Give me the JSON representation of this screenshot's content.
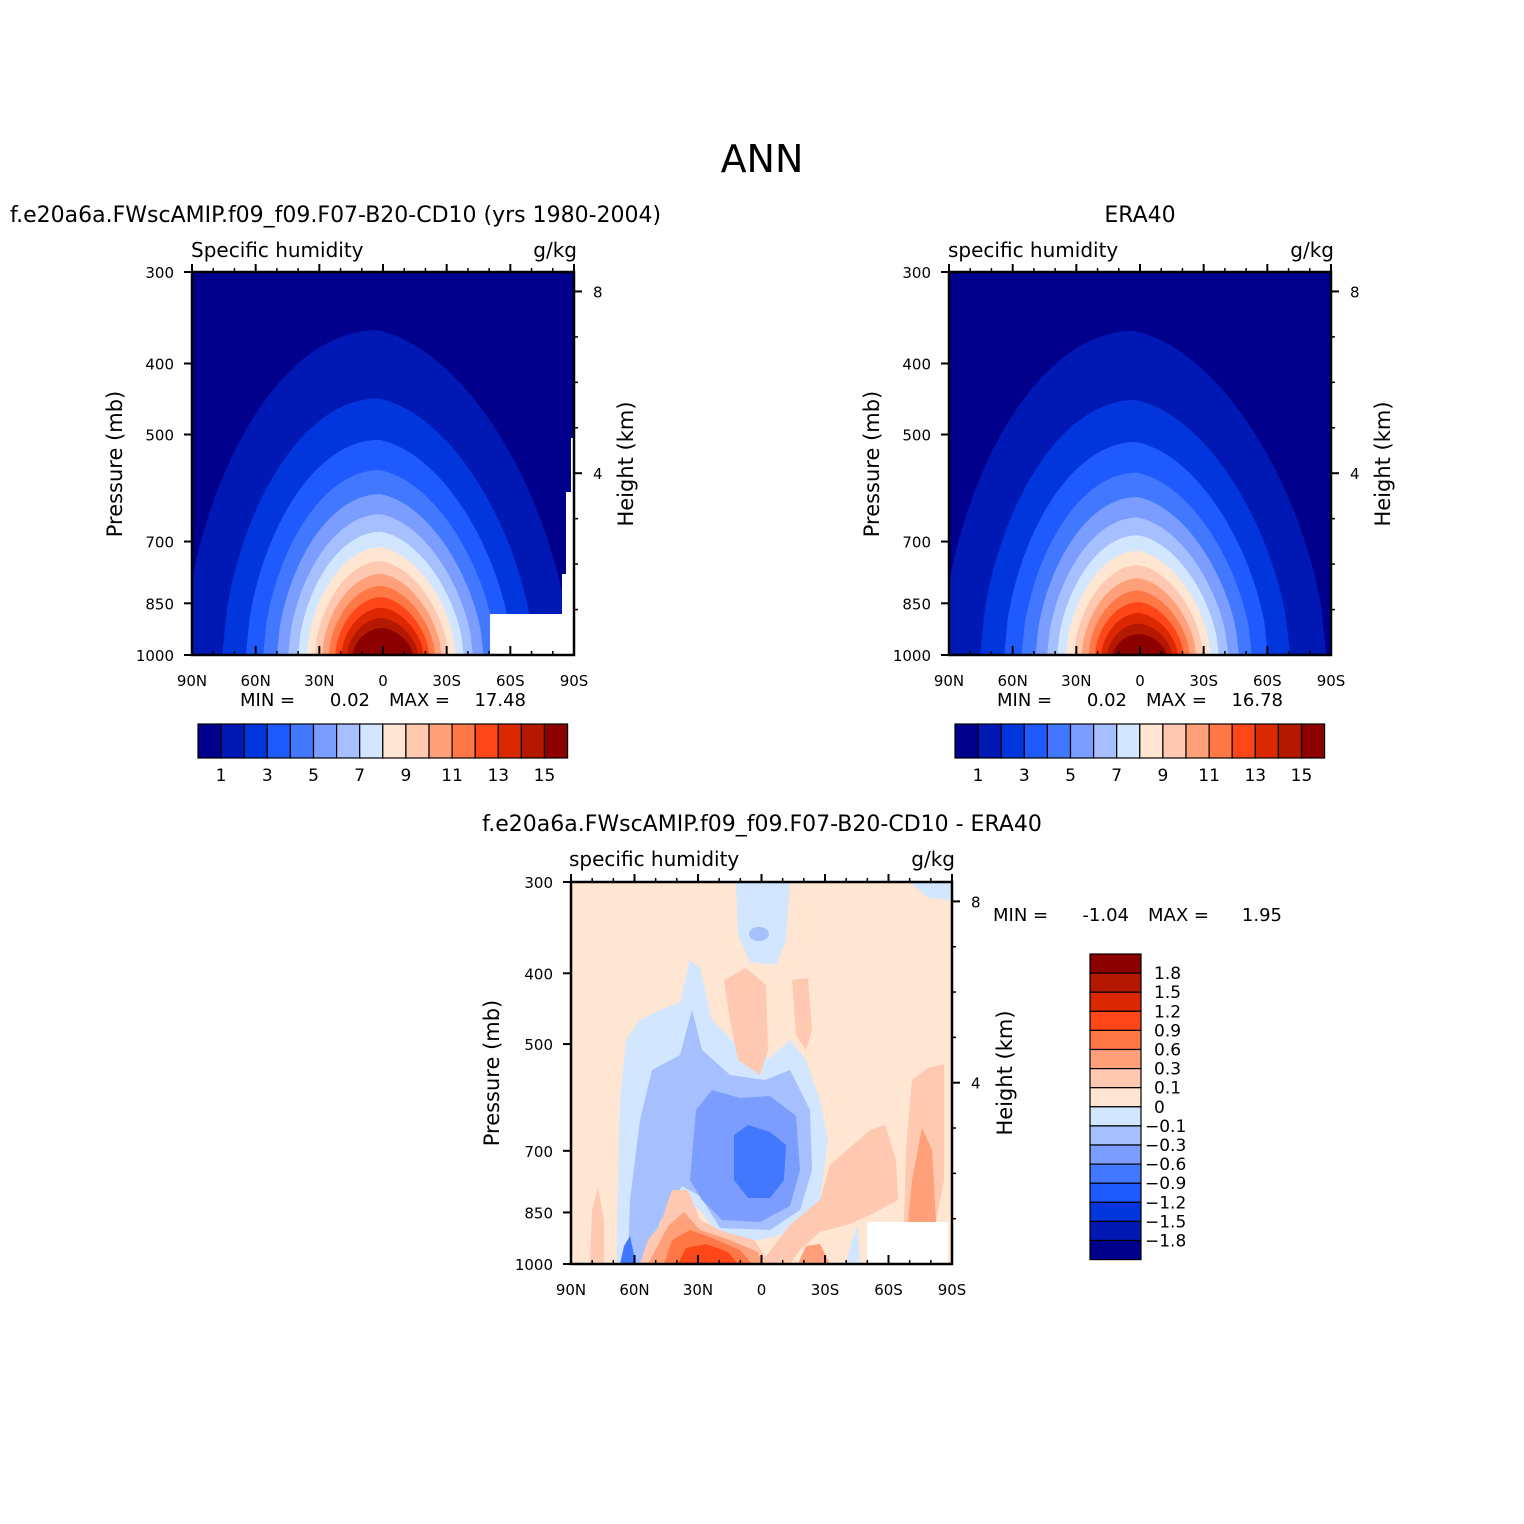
{
  "figure": {
    "title": "ANN"
  },
  "panels": [
    {
      "case": "f.e20a6a.FWscAMIP.f09_f09.F07-B20-CD10 (yrs 1980-2004)",
      "variable": "Specific humidity",
      "units": "g/kg",
      "ylabel": "Pressure (mb)",
      "ylabel_right": "Height (km)",
      "min_label": "MIN =",
      "min_value": "0.02",
      "max_label": "MAX =",
      "max_value": "17.48"
    },
    {
      "case": "ERA40",
      "variable": "specific humidity",
      "units": "g/kg",
      "ylabel": "Pressure (mb)",
      "ylabel_right": "Height (km)",
      "min_label": "MIN =",
      "min_value": "0.02",
      "max_label": "MAX =",
      "max_value": "16.78"
    },
    {
      "case": "f.e20a6a.FWscAMIP.f09_f09.F07-B20-CD10 - ERA40",
      "variable": "specific humidity",
      "units": "g/kg",
      "ylabel": "Pressure (mb)",
      "ylabel_right": "Height (km)",
      "min_label": "MIN =",
      "min_value": "-1.04",
      "max_label": "MAX =",
      "max_value": "1.95"
    }
  ],
  "chart_data": [
    {
      "type": "heatmap",
      "title": "f.e20a6a.FWscAMIP.f09_f09.F07-B20-CD10 (yrs 1980-2004)",
      "subtitle": "Specific humidity",
      "units": "g/kg",
      "ylabel": "Pressure (mb)",
      "ylabel_right": "Height (km)",
      "x_tick_labels": [
        "90N",
        "60N",
        "30N",
        "0",
        "30S",
        "60S",
        "90S"
      ],
      "x_ticks_lat": [
        90,
        60,
        30,
        0,
        -30,
        -60,
        -90
      ],
      "y_ticks": [
        300,
        400,
        500,
        700,
        850,
        1000
      ],
      "y_ticks_right_km": [
        4,
        8
      ],
      "ylim": [
        1000,
        300
      ],
      "xlim": [
        90,
        -90
      ],
      "min": 0.02,
      "max": 17.48,
      "peak_lat": 0,
      "peak_value": 17.48,
      "colorbar_labels": [
        "1",
        "3",
        "5",
        "7",
        "9",
        "11",
        "13",
        "15"
      ],
      "levels": [
        1,
        2,
        3,
        4,
        5,
        6,
        7,
        8,
        9,
        10,
        11,
        12,
        13,
        14,
        15
      ],
      "colors": [
        "#00008c",
        "#0019b4",
        "#0036dc",
        "#1e5aff",
        "#4178ff",
        "#7b9dff",
        "#a5bfff",
        "#d2e7ff",
        "#ffe6d2",
        "#ffc8b0",
        "#ffa07a",
        "#ff7846",
        "#ff4619",
        "#dc2800",
        "#b41900",
        "#8c0000"
      ],
      "missing_region": "surface below 1000 mb near 60S-90S"
    },
    {
      "type": "heatmap",
      "title": "ERA40",
      "subtitle": "specific humidity",
      "units": "g/kg",
      "ylabel": "Pressure (mb)",
      "ylabel_right": "Height (km)",
      "x_tick_labels": [
        "90N",
        "60N",
        "30N",
        "0",
        "30S",
        "60S",
        "90S"
      ],
      "x_ticks_lat": [
        90,
        60,
        30,
        0,
        -30,
        -60,
        -90
      ],
      "y_ticks": [
        300,
        400,
        500,
        700,
        850,
        1000
      ],
      "y_ticks_right_km": [
        4,
        8
      ],
      "ylim": [
        1000,
        300
      ],
      "xlim": [
        90,
        -90
      ],
      "min": 0.02,
      "max": 16.78,
      "peak_lat": 0,
      "peak_value": 16.78,
      "colorbar_labels": [
        "1",
        "3",
        "5",
        "7",
        "9",
        "11",
        "13",
        "15"
      ],
      "levels": [
        1,
        2,
        3,
        4,
        5,
        6,
        7,
        8,
        9,
        10,
        11,
        12,
        13,
        14,
        15
      ],
      "colors": [
        "#00008c",
        "#0019b4",
        "#0036dc",
        "#1e5aff",
        "#4178ff",
        "#7b9dff",
        "#a5bfff",
        "#d2e7ff",
        "#ffe6d2",
        "#ffc8b0",
        "#ffa07a",
        "#ff7846",
        "#ff4619",
        "#dc2800",
        "#b41900",
        "#8c0000"
      ]
    },
    {
      "type": "heatmap",
      "title": "f.e20a6a.FWscAMIP.f09_f09.F07-B20-CD10 - ERA40",
      "subtitle": "specific humidity",
      "units": "g/kg",
      "ylabel": "Pressure (mb)",
      "ylabel_right": "Height (km)",
      "x_tick_labels": [
        "90N",
        "60N",
        "30N",
        "0",
        "30S",
        "60S",
        "90S"
      ],
      "x_ticks_lat": [
        90,
        60,
        30,
        0,
        -30,
        -60,
        -90
      ],
      "y_ticks": [
        300,
        400,
        500,
        700,
        850,
        1000
      ],
      "y_ticks_right_km": [
        4,
        8
      ],
      "ylim": [
        1000,
        300
      ],
      "xlim": [
        90,
        -90
      ],
      "min": -1.04,
      "max": 1.95,
      "colorbar_labels": [
        "1.8",
        "1.5",
        "1.2",
        "0.9",
        "0.6",
        "0.3",
        "0.1",
        "0",
        "-0.1",
        "-0.3",
        "-0.6",
        "-0.9",
        "-1.2",
        "-1.5",
        "-1.8"
      ],
      "colors_top_to_bottom": [
        "#8c0000",
        "#b41900",
        "#dc2800",
        "#ff4619",
        "#ff7846",
        "#ffa07a",
        "#ffc8b0",
        "#ffe6d2",
        "#d2e7ff",
        "#a5bfff",
        "#7b9dff",
        "#4178ff",
        "#1e5aff",
        "#0036dc",
        "#0019b4",
        "#00008c"
      ],
      "background_value": 0.05,
      "anomalies": [
        {
          "lat": 10,
          "p": 780,
          "value": -0.9
        },
        {
          "lat": 15,
          "p": 750,
          "value": -0.6
        },
        {
          "lat": 30,
          "p": 700,
          "value": -0.3
        },
        {
          "lat": 45,
          "p": 600,
          "value": -0.1
        },
        {
          "lat": 8,
          "p": 340,
          "value": -0.1
        },
        {
          "lat": -30,
          "p": 900,
          "value": 0.3
        },
        {
          "lat": -75,
          "p": 800,
          "value": 0.3
        },
        {
          "lat": 25,
          "p": 960,
          "value": 0.9
        },
        {
          "lat": -20,
          "p": 980,
          "value": 0.6
        },
        {
          "lat": -5,
          "p": 500,
          "value": 0.1
        },
        {
          "lat": 60,
          "p": 990,
          "value": -0.6
        }
      ]
    }
  ]
}
